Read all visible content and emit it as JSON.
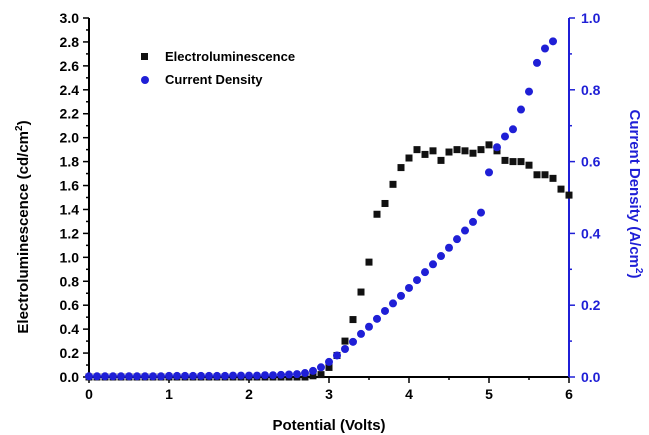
{
  "chart_data": {
    "type": "scatter",
    "xlabel": "Potential (Volts)",
    "ylabel": "Electroluminescence (cd/cm",
    "ylabel_sup": "2",
    "ylabel_close": ")",
    "y2label": "Current Density (A/cm",
    "y2label_sup": "2",
    "y2label_close": ")",
    "xlim": [
      0,
      6
    ],
    "ylim": [
      0,
      3.0
    ],
    "y2lim": [
      0,
      1.0
    ],
    "x_ticks": [
      "0",
      "1",
      "2",
      "3",
      "4",
      "5",
      "6"
    ],
    "y_ticks": [
      "0.0",
      "0.2",
      "0.4",
      "0.6",
      "0.8",
      "1.0",
      "1.2",
      "1.4",
      "1.6",
      "1.8",
      "2.0",
      "2.2",
      "2.4",
      "2.6",
      "2.8",
      "3.0"
    ],
    "y2_ticks": [
      "0.0",
      "0.2",
      "0.4",
      "0.6",
      "0.8",
      "1.0"
    ],
    "legend_position": "top-left",
    "grid": false,
    "series": [
      {
        "name": "Electroluminescence",
        "axis": "left",
        "marker": "square",
        "color": "#111111",
        "x": [
          0.0,
          0.1,
          0.2,
          0.3,
          0.4,
          0.5,
          0.6,
          0.7,
          0.8,
          0.9,
          1.0,
          1.1,
          1.2,
          1.3,
          1.4,
          1.5,
          1.6,
          1.7,
          1.8,
          1.9,
          2.0,
          2.1,
          2.2,
          2.3,
          2.4,
          2.5,
          2.6,
          2.7,
          2.8,
          2.9,
          3.0,
          3.1,
          3.2,
          3.3,
          3.4,
          3.5,
          3.6,
          3.7,
          3.8,
          3.9,
          4.0,
          4.1,
          4.2,
          4.3,
          4.4,
          4.5,
          4.6,
          4.7,
          4.8,
          4.9,
          5.0,
          5.1,
          5.2,
          5.3,
          5.4,
          5.5,
          5.6,
          5.7,
          5.8,
          5.9,
          6.0
        ],
        "y": [
          0,
          0,
          0,
          0,
          0,
          0,
          0,
          0,
          0,
          0,
          0,
          0,
          0,
          0,
          0,
          0,
          0,
          0,
          0,
          0,
          0,
          0,
          0,
          0,
          0,
          0,
          0,
          0,
          0.01,
          0.02,
          0.08,
          0.18,
          0.3,
          0.48,
          0.71,
          0.96,
          1.36,
          1.45,
          1.61,
          1.75,
          1.83,
          1.9,
          1.86,
          1.89,
          1.81,
          1.88,
          1.9,
          1.89,
          1.87,
          1.9,
          1.94,
          1.89,
          1.81,
          1.8,
          1.8,
          1.77,
          1.69,
          1.69,
          1.66,
          1.57,
          1.52
        ]
      },
      {
        "name": "Current Density",
        "axis": "right",
        "marker": "circle",
        "color": "#1f1fd6",
        "x": [
          0.0,
          0.1,
          0.2,
          0.3,
          0.4,
          0.5,
          0.6,
          0.7,
          0.8,
          0.9,
          1.0,
          1.1,
          1.2,
          1.3,
          1.4,
          1.5,
          1.6,
          1.7,
          1.8,
          1.9,
          2.0,
          2.1,
          2.2,
          2.3,
          2.4,
          2.5,
          2.6,
          2.7,
          2.8,
          2.9,
          3.0,
          3.1,
          3.2,
          3.3,
          3.4,
          3.5,
          3.6,
          3.7,
          3.8,
          3.9,
          4.0,
          4.1,
          4.2,
          4.3,
          4.4,
          4.5,
          4.6,
          4.7,
          4.8,
          4.9,
          5.0,
          5.1,
          5.2,
          5.3,
          5.4,
          5.5,
          5.6,
          5.7,
          5.8
        ],
        "y": [
          0.002,
          0.002,
          0.002,
          0.002,
          0.002,
          0.002,
          0.002,
          0.002,
          0.002,
          0.002,
          0.003,
          0.003,
          0.003,
          0.003,
          0.003,
          0.003,
          0.003,
          0.003,
          0.004,
          0.004,
          0.004,
          0.004,
          0.005,
          0.005,
          0.006,
          0.007,
          0.008,
          0.011,
          0.017,
          0.027,
          0.042,
          0.06,
          0.078,
          0.098,
          0.12,
          0.14,
          0.162,
          0.184,
          0.205,
          0.226,
          0.248,
          0.27,
          0.292,
          0.314,
          0.337,
          0.36,
          0.384,
          0.408,
          0.432,
          0.458,
          0.57,
          0.64,
          0.67,
          0.69,
          0.745,
          0.795,
          0.875,
          0.915,
          0.935
        ]
      }
    ]
  }
}
